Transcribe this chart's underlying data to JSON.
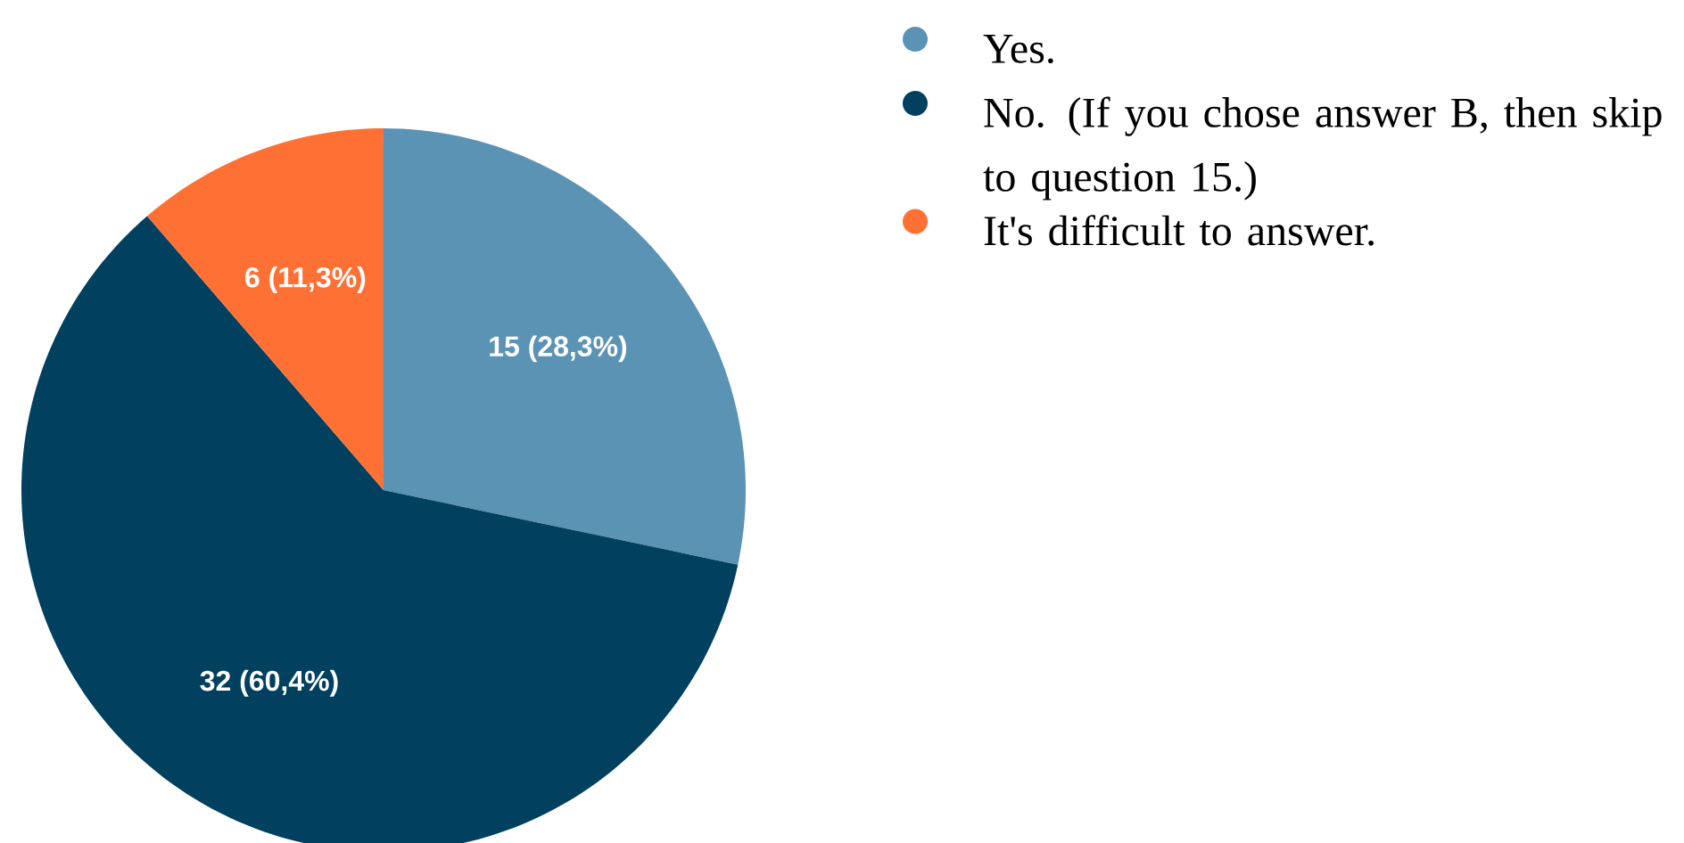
{
  "chart_data": {
    "type": "pie",
    "categories": [
      "Yes.",
      "No. (If you chose answer B, then skip to question 15.)",
      "It's difficult to answer."
    ],
    "values": [
      15,
      32,
      6
    ],
    "colors": [
      "#5b93b4",
      "#01405e",
      "#ff7034"
    ],
    "value_labels": [
      "15 (28,3%)",
      "32 (60,4%)",
      "6 (11,3%)"
    ],
    "legend": "right"
  }
}
